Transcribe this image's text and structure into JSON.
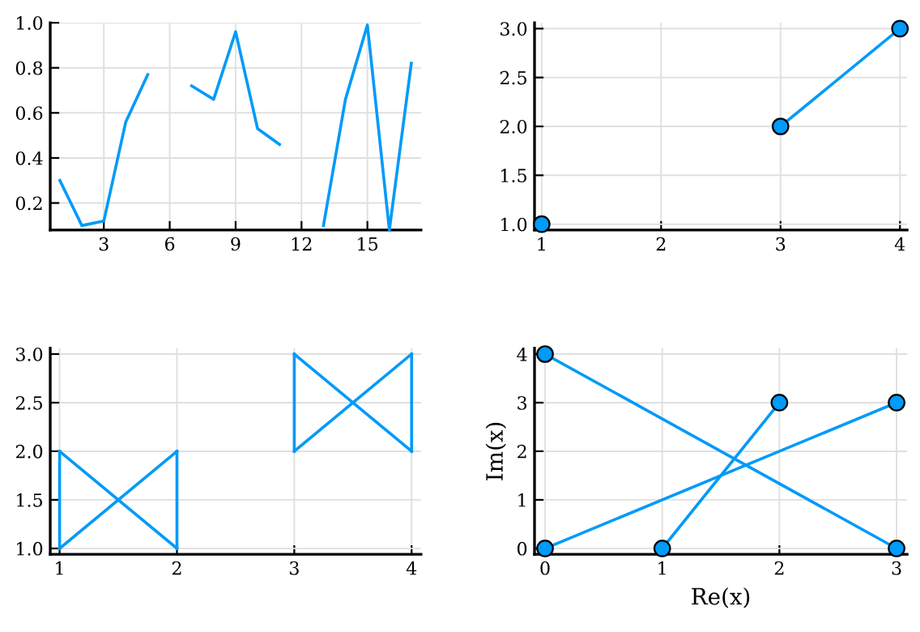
{
  "chart_data": [
    {
      "type": "line",
      "x": [
        1,
        2,
        3,
        4,
        5,
        6,
        7,
        8,
        9,
        10,
        11,
        12,
        13,
        14,
        15,
        16,
        17
      ],
      "series": [
        {
          "color": "#009af9",
          "values": [
            0.3,
            0.1,
            0.12,
            0.56,
            0.77,
            null,
            0.72,
            0.66,
            0.96,
            0.53,
            0.46,
            null,
            0.1,
            0.66,
            0.99,
            0.08,
            0.82
          ]
        }
      ],
      "xlim": [
        0.56,
        17.44
      ],
      "ylim": [
        0.08,
        1.0
      ],
      "xticks": [
        3,
        6,
        9,
        12,
        15
      ],
      "yticks": [
        0.2,
        0.4,
        0.6,
        0.8,
        {
          "value": 1.0,
          "label": "1.0"
        }
      ],
      "grid": true,
      "marker": "none",
      "line_style": "solid"
    },
    {
      "type": "line",
      "x": [
        1,
        2,
        3,
        4
      ],
      "series": [
        {
          "color": "#009af9",
          "values": [
            1,
            null,
            2,
            3
          ]
        }
      ],
      "xlim": [
        0.94,
        4.06
      ],
      "ylim": [
        0.94,
        3.06
      ],
      "xticks": [
        1,
        2,
        3,
        4
      ],
      "yticks": [
        {
          "value": 1,
          "label": "1.0"
        },
        1.5,
        {
          "value": 2,
          "label": "2.0"
        },
        2.5,
        {
          "value": 3,
          "label": "3.0"
        }
      ],
      "grid": true,
      "marker": "circle",
      "line_style": "solid"
    },
    {
      "type": "line",
      "series": [
        {
          "color": "#009af9",
          "x": [
            1,
            2
          ],
          "values": [
            1,
            2
          ]
        },
        {
          "color": "#009af9",
          "x": [
            2,
            2
          ],
          "values": [
            2,
            1
          ]
        },
        {
          "color": "#009af9",
          "x": [
            2,
            1
          ],
          "values": [
            1,
            2
          ]
        },
        {
          "color": "#009af9",
          "x": [
            1,
            1
          ],
          "values": [
            2,
            1
          ]
        },
        {
          "color": "#009af9",
          "x": [
            3,
            4
          ],
          "values": [
            2,
            3
          ]
        },
        {
          "color": "#009af9",
          "x": [
            4,
            4
          ],
          "values": [
            3,
            2
          ]
        },
        {
          "color": "#009af9",
          "x": [
            4,
            3
          ],
          "values": [
            2,
            3
          ]
        },
        {
          "color": "#009af9",
          "x": [
            3,
            3
          ],
          "values": [
            3,
            2
          ]
        }
      ],
      "xlim": [
        0.92,
        4.08
      ],
      "ylim": [
        0.94,
        3.06
      ],
      "xticks": [
        1,
        2,
        3,
        4
      ],
      "yticks": [
        {
          "value": 1,
          "label": "1.0"
        },
        1.5,
        {
          "value": 2,
          "label": "2.0"
        },
        2.5,
        {
          "value": 3,
          "label": "3.0"
        }
      ],
      "grid": true,
      "line_style": "solid"
    },
    {
      "type": "line",
      "xlabel": "Re(x)",
      "ylabel": "Im(x)",
      "series": [
        {
          "color": "#009af9",
          "x": [
            0,
            3
          ],
          "values": [
            4,
            0
          ]
        },
        {
          "color": "#009af9",
          "x": [
            1,
            2
          ],
          "values": [
            0,
            3
          ]
        },
        {
          "color": "#009af9",
          "x": [
            0,
            3
          ],
          "values": [
            0,
            3
          ]
        }
      ],
      "xlim": [
        -0.09,
        3.09
      ],
      "ylim": [
        -0.12,
        4.12
      ],
      "xticks": [
        0,
        1,
        2,
        3
      ],
      "yticks": [
        0,
        1,
        2,
        3,
        4
      ],
      "grid": true,
      "marker": "circle",
      "line_style": "solid"
    }
  ]
}
